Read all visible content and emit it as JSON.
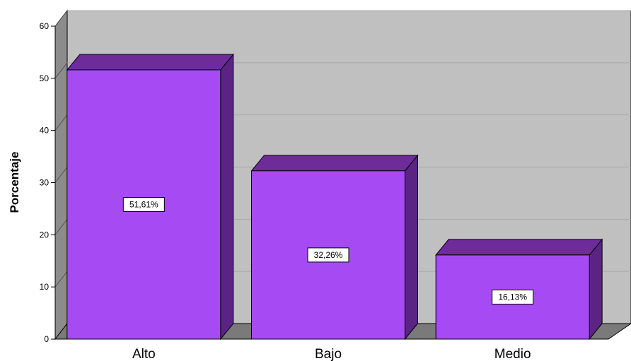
{
  "chart_data": {
    "type": "bar",
    "categories": [
      "Alto",
      "Bajo",
      "Medio"
    ],
    "values": [
      51.61,
      32.26,
      16.13
    ],
    "data_labels": [
      "51,61%",
      "32,26%",
      "16,13%"
    ],
    "ylabel": "Porcentaje",
    "xlabel": "",
    "ylim": [
      0,
      60
    ],
    "yticks": [
      "0",
      "10",
      "20",
      "30",
      "40",
      "50",
      "60"
    ],
    "grid": true,
    "style": "3d",
    "colors": {
      "bar_front": "#a64bf4",
      "bar_top": "#6e2b9a",
      "bar_side": "#5a2384",
      "plot_back": "#c0c0c0",
      "side_wall": "#8c8c8c",
      "floor": "#7a7a7a",
      "grid": "#a8a8a8"
    }
  }
}
